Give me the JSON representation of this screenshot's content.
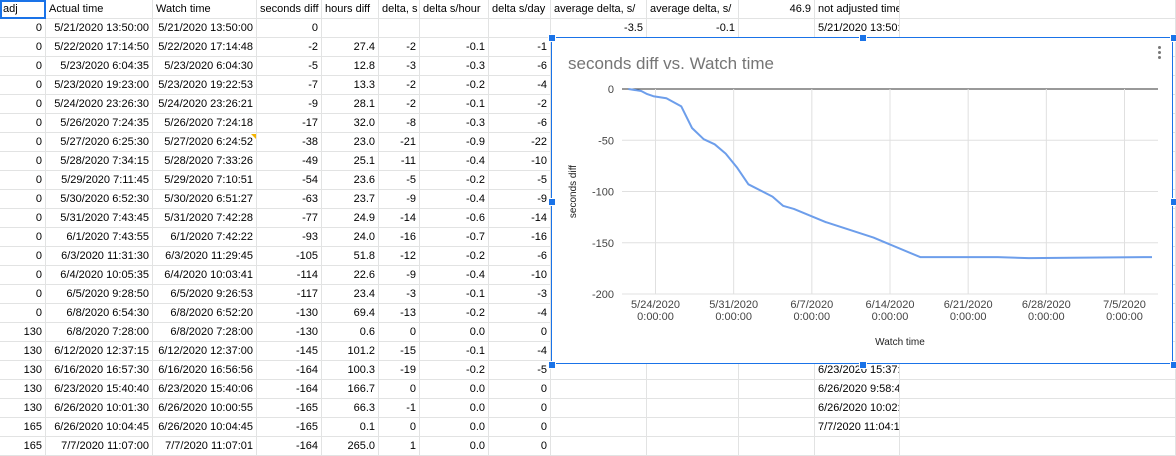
{
  "headers": [
    "adj",
    "Actual time",
    "Watch time",
    "seconds diff",
    "hours diff",
    "delta, s",
    "delta s/hour",
    "delta s/day",
    "average delta, s/",
    "average delta, s/",
    "46.9",
    "not adjusted time"
  ],
  "row1_extra": {
    "avg1": "-3.5",
    "avg2": "-0.1",
    "naj": "5/21/2020 13:50:"
  },
  "rows": [
    [
      "0",
      "5/21/2020 13:50:00",
      "5/21/2020 13:50:00",
      "0",
      "",
      "",
      "",
      ""
    ],
    [
      "0",
      "5/22/2020 17:14:50",
      "5/22/2020 17:14:48",
      "-2",
      "27.4",
      "-2",
      "-0.1",
      "-1"
    ],
    [
      "0",
      "5/23/2020 6:04:35",
      "5/23/2020 6:04:30",
      "-5",
      "12.8",
      "-3",
      "-0.3",
      "-6"
    ],
    [
      "0",
      "5/23/2020 19:23:00",
      "5/23/2020 19:22:53",
      "-7",
      "13.3",
      "-2",
      "-0.2",
      "-4"
    ],
    [
      "0",
      "5/24/2020 23:26:30",
      "5/24/2020 23:26:21",
      "-9",
      "28.1",
      "-2",
      "-0.1",
      "-2"
    ],
    [
      "0",
      "5/26/2020 7:24:35",
      "5/26/2020 7:24:18",
      "-17",
      "32.0",
      "-8",
      "-0.3",
      "-6"
    ],
    [
      "0",
      "5/27/2020 6:25:30",
      "5/27/2020 6:24:52",
      "-38",
      "23.0",
      "-21",
      "-0.9",
      "-22"
    ],
    [
      "0",
      "5/28/2020 7:34:15",
      "5/28/2020 7:33:26",
      "-49",
      "25.1",
      "-11",
      "-0.4",
      "-10"
    ],
    [
      "0",
      "5/29/2020 7:11:45",
      "5/29/2020 7:10:51",
      "-54",
      "23.6",
      "-5",
      "-0.2",
      "-5"
    ],
    [
      "0",
      "5/30/2020 6:52:30",
      "5/30/2020 6:51:27",
      "-63",
      "23.7",
      "-9",
      "-0.4",
      "-9"
    ],
    [
      "0",
      "5/31/2020 7:43:45",
      "5/31/2020 7:42:28",
      "-77",
      "24.9",
      "-14",
      "-0.6",
      "-14"
    ],
    [
      "0",
      "6/1/2020 7:43:55",
      "6/1/2020 7:42:22",
      "-93",
      "24.0",
      "-16",
      "-0.7",
      "-16"
    ],
    [
      "0",
      "6/3/2020 11:31:30",
      "6/3/2020 11:29:45",
      "-105",
      "51.8",
      "-12",
      "-0.2",
      "-6"
    ],
    [
      "0",
      "6/4/2020 10:05:35",
      "6/4/2020 10:03:41",
      "-114",
      "22.6",
      "-9",
      "-0.4",
      "-10"
    ],
    [
      "0",
      "6/5/2020 9:28:50",
      "6/5/2020 9:26:53",
      "-117",
      "23.4",
      "-3",
      "-0.1",
      "-3"
    ],
    [
      "0",
      "6/8/2020 6:54:30",
      "6/8/2020 6:52:20",
      "-130",
      "69.4",
      "-13",
      "-0.2",
      "-4"
    ],
    [
      "130",
      "6/8/2020 7:28:00",
      "6/8/2020 7:28:00",
      "-130",
      "0.6",
      "0",
      "0.0",
      "0"
    ],
    [
      "130",
      "6/12/2020 12:37:15",
      "6/12/2020 12:37:00",
      "-145",
      "101.2",
      "-15",
      "-0.1",
      "-4"
    ],
    [
      "130",
      "6/16/2020 16:57:30",
      "6/16/2020 16:56:56",
      "-164",
      "100.3",
      "-19",
      "-0.2",
      "-5"
    ],
    [
      "130",
      "6/23/2020 15:40:40",
      "6/23/2020 15:40:06",
      "-164",
      "166.7",
      "0",
      "0.0",
      "0"
    ],
    [
      "130",
      "6/26/2020 10:01:30",
      "6/26/2020 10:00:55",
      "-165",
      "66.3",
      "-1",
      "0.0",
      "0"
    ],
    [
      "165",
      "6/26/2020 10:04:45",
      "6/26/2020 10:04:45",
      "-165",
      "0.1",
      "0",
      "0.0",
      "0"
    ],
    [
      "165",
      "7/7/2020 11:07:00",
      "7/7/2020 11:07:01",
      "-164",
      "265.0",
      "1",
      "0.0",
      "0"
    ]
  ],
  "not_adjusted_tail": [
    {
      "row": 19,
      "text": "6/23/2020 15:37:"
    },
    {
      "row": 20,
      "text": "6/26/2020 9:58:4"
    },
    {
      "row": 21,
      "text": "6/26/2020 10:02:"
    },
    {
      "row": 22,
      "text": "7/7/2020 11:04:1"
    }
  ],
  "chart_data": {
    "type": "line",
    "title": "seconds diff vs. Watch time",
    "xlabel": "Watch time",
    "ylabel": "seconds diff",
    "ylim": [
      -200,
      0
    ],
    "yticks": [
      0,
      -50,
      -100,
      -150,
      -200
    ],
    "xticks": [
      {
        "date": "2020-05-24",
        "l1": "5/24/2020",
        "l2": "0:00:00"
      },
      {
        "date": "2020-05-31",
        "l1": "5/31/2020",
        "l2": "0:00:00"
      },
      {
        "date": "2020-06-07",
        "l1": "6/7/2020",
        "l2": "0:00:00"
      },
      {
        "date": "2020-06-14",
        "l1": "6/14/2020",
        "l2": "0:00:00"
      },
      {
        "date": "2020-06-21",
        "l1": "6/21/2020",
        "l2": "0:00:00"
      },
      {
        "date": "2020-06-28",
        "l1": "6/28/2020",
        "l2": "0:00:00"
      },
      {
        "date": "2020-07-05",
        "l1": "7/5/2020",
        "l2": "0:00:00"
      }
    ],
    "xrange": [
      "2020-05-21T00:00:00",
      "2020-07-08T00:00:00"
    ],
    "series": [
      {
        "color": "#6d9eeb",
        "points": [
          [
            "2020-05-21T13:50:00",
            0
          ],
          [
            "2020-05-22T17:14:48",
            -2
          ],
          [
            "2020-05-23T06:04:30",
            -5
          ],
          [
            "2020-05-23T19:22:53",
            -7
          ],
          [
            "2020-05-24T23:26:21",
            -9
          ],
          [
            "2020-05-26T07:24:18",
            -17
          ],
          [
            "2020-05-27T06:24:52",
            -38
          ],
          [
            "2020-05-28T07:33:26",
            -49
          ],
          [
            "2020-05-29T07:10:51",
            -54
          ],
          [
            "2020-05-30T06:51:27",
            -63
          ],
          [
            "2020-05-31T07:42:28",
            -77
          ],
          [
            "2020-06-01T07:42:22",
            -93
          ],
          [
            "2020-06-03T11:29:45",
            -105
          ],
          [
            "2020-06-04T10:03:41",
            -114
          ],
          [
            "2020-06-05T09:26:53",
            -117
          ],
          [
            "2020-06-08T06:52:20",
            -130
          ],
          [
            "2020-06-08T07:28:00",
            -130
          ],
          [
            "2020-06-12T12:37:00",
            -145
          ],
          [
            "2020-06-16T16:56:56",
            -164
          ],
          [
            "2020-06-23T15:40:06",
            -164
          ],
          [
            "2020-06-26T10:00:55",
            -165
          ],
          [
            "2020-06-26T10:04:45",
            -165
          ],
          [
            "2020-07-07T11:07:01",
            -164
          ]
        ]
      }
    ],
    "colors": {
      "grid": "#e0e0e0",
      "axis": "#333333",
      "title": "#757575"
    }
  }
}
